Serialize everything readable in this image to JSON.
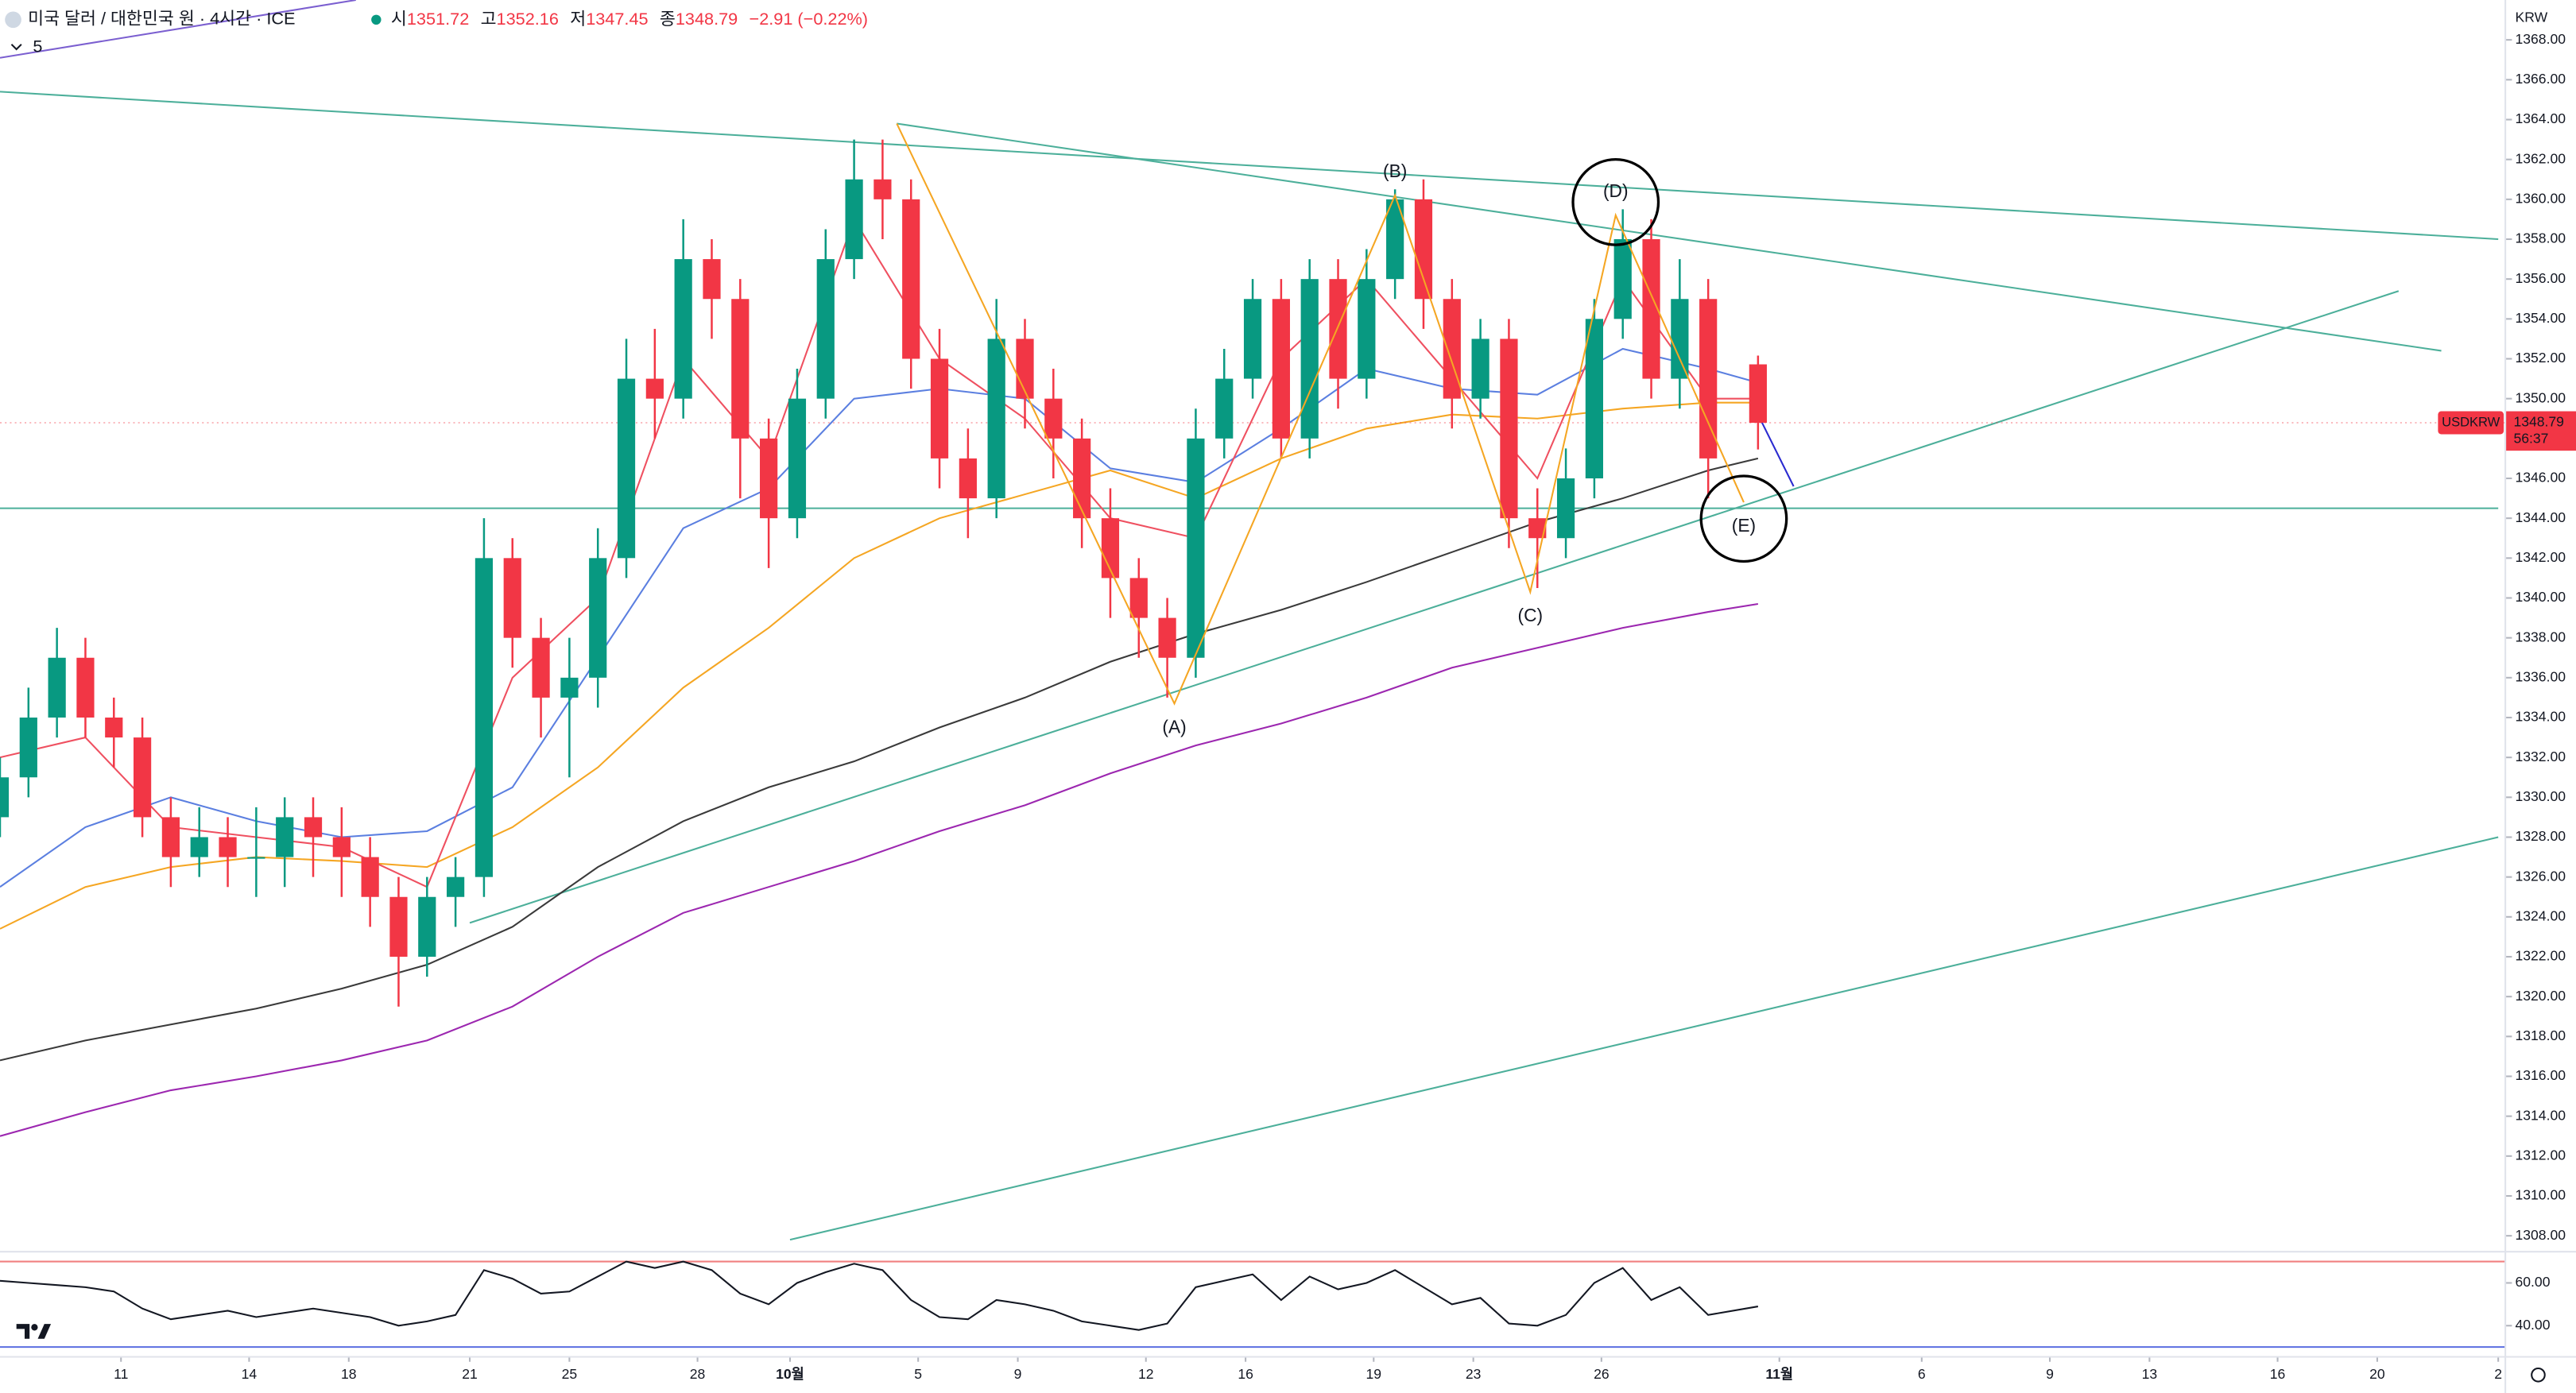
{
  "header": {
    "symbol": "미국 달러 / 대한민국 원 · 4시간 · ICE",
    "ohlc": [
      {
        "label": "시",
        "value": 1351.72
      },
      {
        "label": "고",
        "value": 1352.16
      },
      {
        "label": "저",
        "value": 1347.45
      },
      {
        "label": "종",
        "value": 1348.79
      }
    ],
    "change": "−2.91 (−0.22%)",
    "indicators": "5",
    "currency": "KRW"
  },
  "chart_data": {
    "type": "candlestick",
    "symbol": "USDKRW",
    "countdown": "56:37",
    "last_price": 1348.79,
    "up_color": "#089981",
    "down_color": "#f23645",
    "xlim": [
      0,
      352
    ],
    "ylim": [
      1307.2,
      1370
    ],
    "x": [
      0,
      4,
      8,
      12,
      16,
      20,
      24,
      28,
      32,
      36,
      40,
      44,
      48,
      52,
      56,
      60,
      64,
      68,
      72,
      76,
      80,
      84,
      88,
      92,
      96,
      100,
      104,
      108,
      112,
      116,
      120,
      124,
      128,
      132,
      136,
      140,
      144,
      148,
      152,
      156,
      160,
      164,
      168,
      172,
      176,
      180,
      184,
      188,
      192,
      196,
      200,
      204,
      208,
      212,
      216,
      220,
      224,
      228,
      232,
      236,
      240,
      247
    ],
    "open": [
      1329,
      1331,
      1334,
      1337,
      1334,
      1333,
      1329,
      1327,
      1328,
      1327,
      1327,
      1329,
      1328,
      1327,
      1325,
      1322,
      1325,
      1326,
      1342,
      1338,
      1335,
      1336,
      1342,
      1351,
      1350,
      1357,
      1355,
      1348,
      1344,
      1350,
      1357,
      1361,
      1360,
      1352,
      1347,
      1345,
      1353,
      1350,
      1348,
      1344,
      1341,
      1339,
      1337,
      1348,
      1351,
      1355,
      1348,
      1356,
      1351,
      1356,
      1360,
      1355,
      1350,
      1353,
      1344,
      1343,
      1346,
      1354,
      1358,
      1351,
      1355,
      1351.72
    ],
    "high": [
      1332,
      1335.5,
      1338.5,
      1338,
      1335,
      1334,
      1330,
      1329.5,
      1329,
      1329.5,
      1330,
      1330,
      1329.5,
      1328,
      1326,
      1326,
      1327,
      1344,
      1343,
      1339,
      1338,
      1343.5,
      1353,
      1353.5,
      1359,
      1358,
      1356,
      1349,
      1351.5,
      1358.5,
      1363,
      1363,
      1361,
      1353.5,
      1348.5,
      1355,
      1354,
      1351.5,
      1349,
      1345.5,
      1342,
      1340,
      1349.5,
      1352.5,
      1356,
      1356,
      1357,
      1357,
      1357.5,
      1360.5,
      1361,
      1356,
      1354,
      1354,
      1345.5,
      1347.5,
      1355,
      1359.5,
      1359,
      1357,
      1356,
      1352.16
    ],
    "low": [
      1328,
      1330,
      1333,
      1333,
      1331.5,
      1328,
      1325.5,
      1326,
      1325.5,
      1325,
      1325.5,
      1326,
      1325,
      1323.5,
      1319.5,
      1321,
      1323.5,
      1325,
      1336.5,
      1333,
      1331,
      1334.5,
      1341,
      1348,
      1349,
      1353,
      1345,
      1341.5,
      1343,
      1349,
      1356,
      1358,
      1350.5,
      1345.5,
      1343,
      1344,
      1348.5,
      1346,
      1342.5,
      1339,
      1337,
      1335,
      1336,
      1347,
      1350,
      1347,
      1347,
      1349.5,
      1350,
      1355,
      1353.5,
      1348.5,
      1349,
      1342.5,
      1340.5,
      1342,
      1345,
      1353,
      1350,
      1349.5,
      1345,
      1347.45
    ],
    "close": [
      1331,
      1334,
      1337,
      1334,
      1333,
      1329,
      1327,
      1328,
      1327,
      1327,
      1329,
      1328,
      1327,
      1325,
      1322,
      1325,
      1326,
      1342,
      1338,
      1335,
      1336,
      1342,
      1351,
      1350,
      1357,
      1355,
      1348,
      1344,
      1350,
      1357,
      1361,
      1360,
      1352,
      1347,
      1345,
      1353,
      1350,
      1348,
      1344,
      1341,
      1339,
      1337,
      1348,
      1351,
      1355,
      1348,
      1356,
      1351,
      1356,
      1360,
      1355,
      1350,
      1353,
      1344,
      1343,
      1346,
      1354,
      1358,
      1351,
      1355,
      1347,
      1348.79
    ],
    "yticks": [
      {
        "value": 1308,
        "label": "1308.00"
      },
      {
        "value": 1310,
        "label": "1310.00"
      },
      {
        "value": 1312,
        "label": "1312.00"
      },
      {
        "value": 1314,
        "label": "1314.00"
      },
      {
        "value": 1316,
        "label": "1316.00"
      },
      {
        "value": 1318,
        "label": "1318.00"
      },
      {
        "value": 1320,
        "label": "1320.00"
      },
      {
        "value": 1322,
        "label": "1322.00"
      },
      {
        "value": 1324,
        "label": "1324.00"
      },
      {
        "value": 1326,
        "label": "1326.00"
      },
      {
        "value": 1328,
        "label": "1328.00"
      },
      {
        "value": 1330,
        "label": "1330.00"
      },
      {
        "value": 1332,
        "label": "1332.00"
      },
      {
        "value": 1334,
        "label": "1334.00"
      },
      {
        "value": 1336,
        "label": "1336.00"
      },
      {
        "value": 1338,
        "label": "1338.00"
      },
      {
        "value": 1340,
        "label": "1340.00"
      },
      {
        "value": 1342,
        "label": "1342.00"
      },
      {
        "value": 1344,
        "label": "1344.00"
      },
      {
        "value": 1346,
        "label": "1346.00"
      },
      {
        "value": 1348,
        "label": "1348.00"
      },
      {
        "value": 1350,
        "label": "1350.00"
      },
      {
        "value": 1352,
        "label": "1352.00"
      },
      {
        "value": 1354,
        "label": "1354.00"
      },
      {
        "value": 1356,
        "label": "1356.00"
      },
      {
        "value": 1358,
        "label": "1358.00"
      },
      {
        "value": 1360,
        "label": "1360.00"
      },
      {
        "value": 1362,
        "label": "1362.00"
      },
      {
        "value": 1364,
        "label": "1364.00"
      },
      {
        "value": 1366,
        "label": "1366.00"
      },
      {
        "value": 1368,
        "label": "1368.00"
      }
    ],
    "xticks": [
      {
        "value": 17,
        "label": "11"
      },
      {
        "value": 35,
        "label": "14"
      },
      {
        "value": 49,
        "label": "18"
      },
      {
        "value": 66,
        "label": "21"
      },
      {
        "value": 80,
        "label": "25"
      },
      {
        "value": 98,
        "label": "28"
      },
      {
        "value": 111,
        "label": "10월"
      },
      {
        "value": 129,
        "label": "5"
      },
      {
        "value": 143,
        "label": "9"
      },
      {
        "value": 161,
        "label": "12"
      },
      {
        "value": 175,
        "label": "16"
      },
      {
        "value": 193,
        "label": "19"
      },
      {
        "value": 207,
        "label": "23"
      },
      {
        "value": 225,
        "label": "26"
      },
      {
        "value": 250,
        "label": "11월"
      },
      {
        "value": 270,
        "label": "6"
      },
      {
        "value": 288,
        "label": "9"
      },
      {
        "value": 302,
        "label": "13"
      },
      {
        "value": 320,
        "label": "16"
      },
      {
        "value": 334,
        "label": "20"
      },
      {
        "value": 351,
        "label": "2"
      }
    ],
    "moving_averages": {
      "x": [
        0,
        12,
        24,
        36,
        48,
        60,
        72,
        84,
        96,
        108,
        120,
        132,
        144,
        156,
        168,
        180,
        192,
        204,
        216,
        228,
        240,
        247
      ],
      "series": [
        {
          "color": "#9c27b0",
          "values": [
            1313.0,
            1314.2,
            1315.3,
            1316.0,
            1316.8,
            1317.8,
            1319.5,
            1322.0,
            1324.2,
            1325.5,
            1326.8,
            1328.3,
            1329.6,
            1331.2,
            1332.6,
            1333.7,
            1335.0,
            1336.5,
            1337.5,
            1338.5,
            1339.3,
            1339.7
          ]
        },
        {
          "color": "#3a3a3a",
          "values": [
            1316.8,
            1317.8,
            1318.6,
            1319.4,
            1320.4,
            1321.6,
            1323.5,
            1326.5,
            1328.8,
            1330.5,
            1331.8,
            1333.5,
            1335.0,
            1336.8,
            1338.2,
            1339.4,
            1340.8,
            1342.3,
            1343.8,
            1345.0,
            1346.4,
            1347.0
          ]
        },
        {
          "color": "#f5a623",
          "values": [
            1323.4,
            1325.5,
            1326.5,
            1327.0,
            1326.8,
            1326.5,
            1328.5,
            1331.5,
            1335.5,
            1338.5,
            1342.0,
            1344.0,
            1345.2,
            1346.4,
            1345.0,
            1347.0,
            1348.5,
            1349.2,
            1349.0,
            1349.5,
            1349.8,
            1349.8
          ]
        },
        {
          "color": "#5b7fe0",
          "values": [
            1325.5,
            1328.5,
            1330.0,
            1328.8,
            1328.0,
            1328.3,
            1330.5,
            1337.0,
            1343.5,
            1345.5,
            1350.0,
            1350.5,
            1350.0,
            1346.5,
            1345.8,
            1348.5,
            1351.5,
            1350.5,
            1350.2,
            1352.5,
            1351.5,
            1350.8
          ]
        },
        {
          "color": "#ef5060",
          "values": [
            1332,
            1333,
            1328.5,
            1328,
            1327.5,
            1325.5,
            1336,
            1340,
            1352,
            1347,
            1359,
            1352,
            1349,
            1344,
            1343,
            1352,
            1356,
            1351,
            1346,
            1356,
            1350,
            1350
          ]
        }
      ]
    },
    "trendlines": [
      {
        "color": "#4caf9a",
        "x": [
          0,
          351
        ],
        "y": [
          1365.4,
          1358.0
        ]
      },
      {
        "color": "#4caf9a",
        "x": [
          126,
          343
        ],
        "y": [
          1363.8,
          1352.4
        ]
      },
      {
        "color": "#4caf9a",
        "x": [
          66,
          337
        ],
        "y": [
          1323.7,
          1355.4
        ]
      },
      {
        "color": "#4caf9a",
        "x": [
          0,
          351
        ],
        "y": [
          1344.5,
          1344.5
        ]
      },
      {
        "color": "#4caf9a",
        "x": [
          111,
          351
        ],
        "y": [
          1307.8,
          1328.0
        ]
      },
      {
        "color": "#7b5fd0",
        "x": [
          0,
          50
        ],
        "y": [
          1367.1,
          1370
        ]
      },
      {
        "color": "#2a2ad0",
        "x": [
          247,
          252
        ],
        "y": [
          1349.2,
          1345.6
        ]
      }
    ],
    "wave": {
      "color": "#f5a623",
      "x": [
        126,
        165,
        196,
        215,
        227,
        245
      ],
      "y": [
        1363.8,
        1334.7,
        1360.2,
        1340.3,
        1359.2,
        1344.8
      ],
      "labels": [
        null,
        "(A)",
        "(B)",
        "(C)",
        "(D)",
        "(E)"
      ]
    },
    "rsi": {
      "color": "#131722",
      "ylim": [
        25.4,
        74.6
      ],
      "yticks": [
        {
          "value": 60,
          "label": "60.00"
        },
        {
          "value": 40,
          "label": "40.00"
        }
      ],
      "levels": [
        70,
        30
      ],
      "values": [
        61,
        60,
        59,
        58,
        56,
        48,
        43,
        45,
        47,
        44,
        46,
        48,
        46,
        44,
        40,
        42,
        45,
        66,
        62,
        55,
        56,
        63,
        70,
        67,
        70,
        66,
        55,
        50,
        60,
        65,
        69,
        66,
        52,
        44,
        43,
        52,
        50,
        47,
        42,
        40,
        38,
        41,
        58,
        61,
        64,
        52,
        63,
        57,
        60,
        66,
        58,
        50,
        53,
        41,
        40,
        45,
        60,
        67,
        52,
        58,
        45,
        49
      ]
    }
  }
}
